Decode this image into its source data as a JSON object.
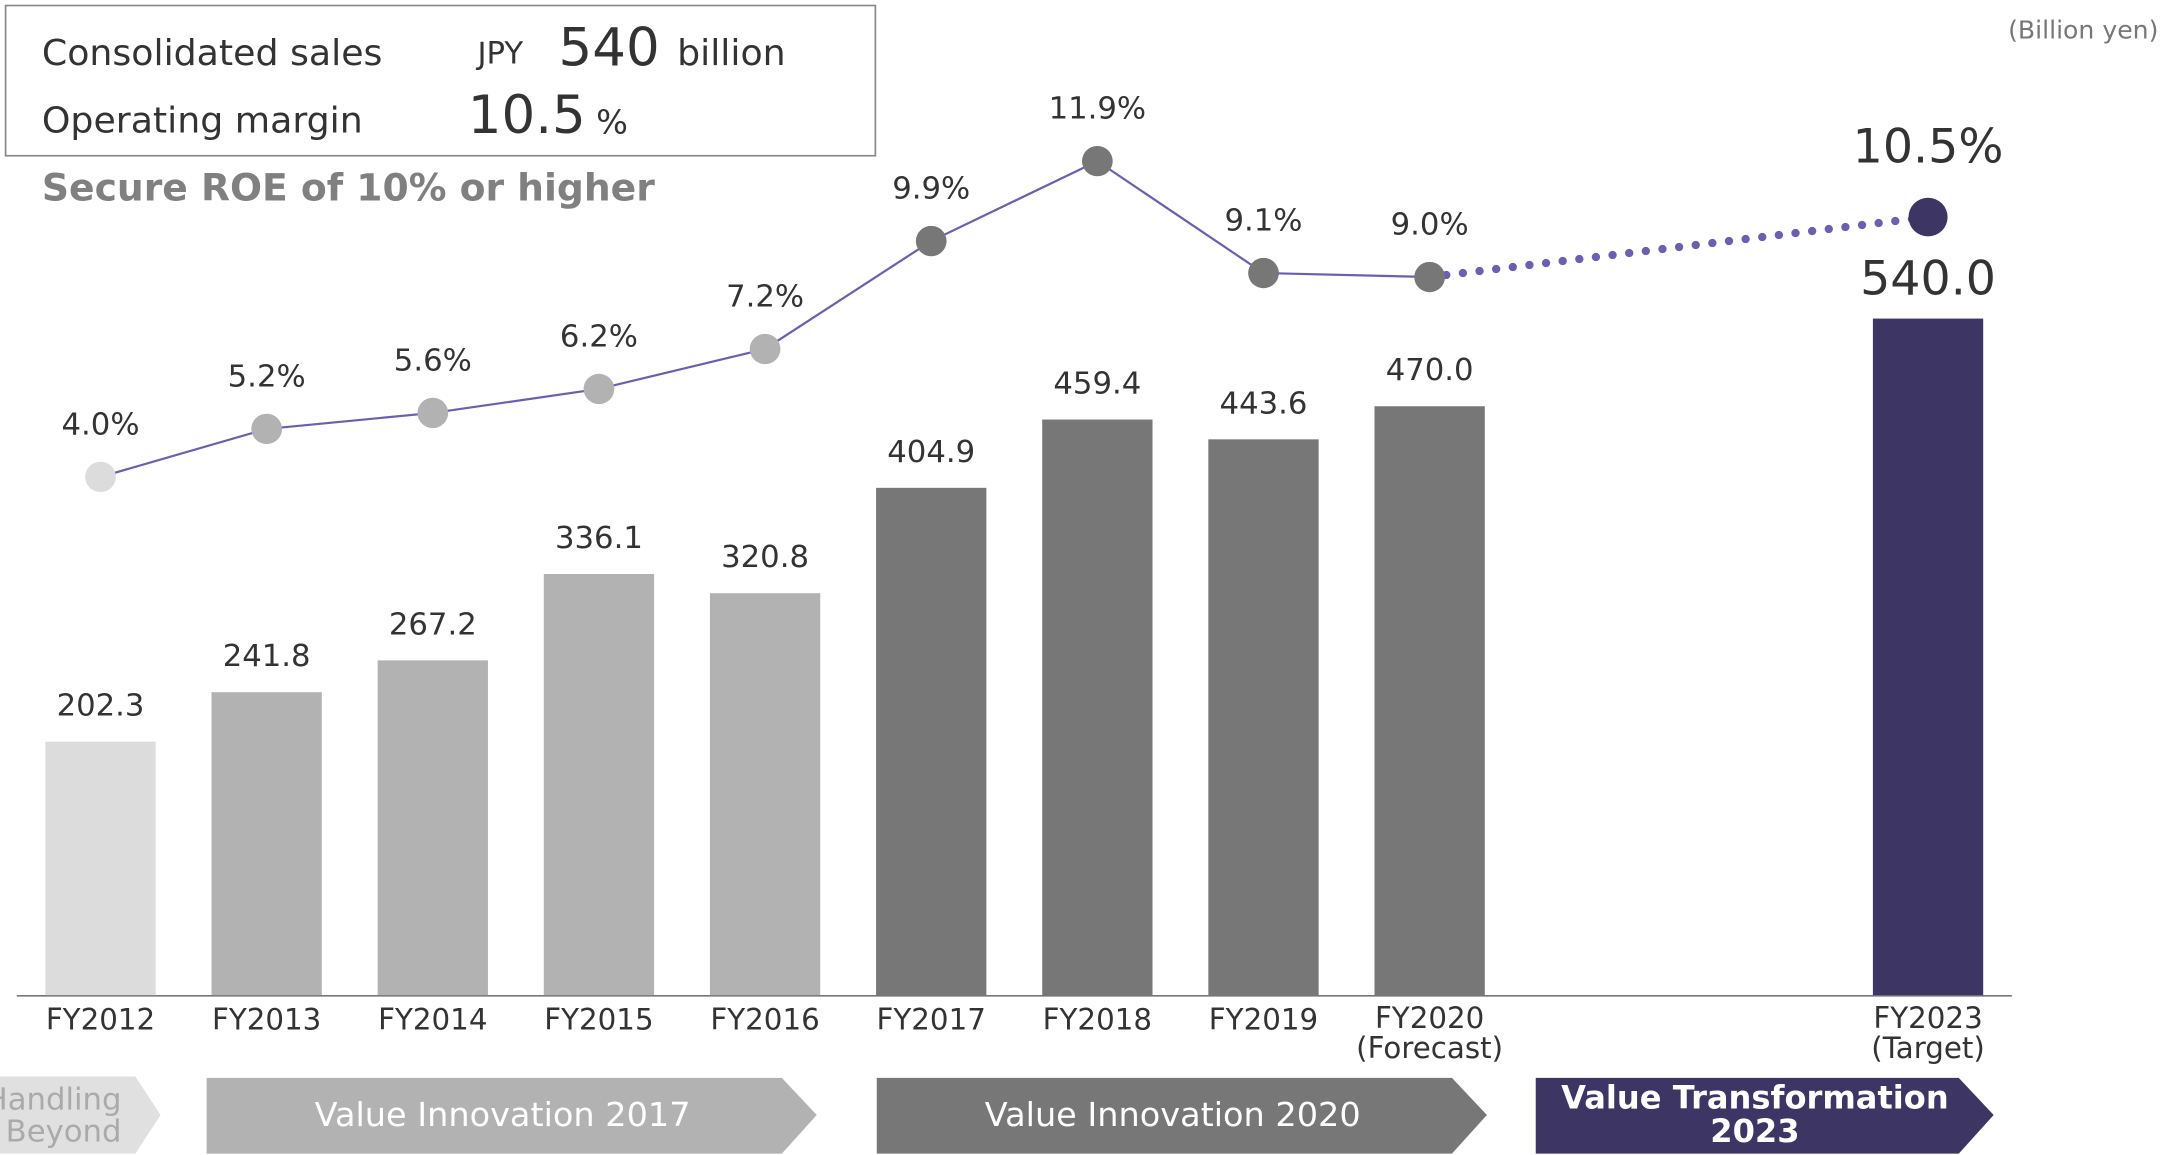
{
  "header": {
    "sales_label": "Consolidated sales",
    "sales_currency": "JPY",
    "sales_value": "540",
    "sales_unit": "billion",
    "margin_label": "Operating margin",
    "margin_value": "10.5",
    "margin_unit": "%"
  },
  "phases": [
    "Handling\nand Beyond",
    "Value Innovation 2017",
    "Value Innovation 2020",
    "Value Transformation\n2023"
  ],
  "chart_data": {
    "type": "bar-line",
    "subtitle": "Secure ROE of 10% or higher",
    "unit_label": "(Billion yen)",
    "categories": [
      "FY2012",
      "FY2013",
      "FY2014",
      "FY2015",
      "FY2016",
      "FY2017",
      "FY2018",
      "FY2019",
      "FY2020\n(Forecast)",
      null,
      null,
      "FY2023\n(Target)"
    ],
    "ylim": [
      0,
      600
    ],
    "y2lim": [
      0,
      12
    ],
    "series": [
      {
        "name": "Consolidated sales",
        "type": "bar",
        "values": [
          202.3,
          241.8,
          267.2,
          336.1,
          320.8,
          404.9,
          459.4,
          443.6,
          470.0,
          null,
          null,
          540.0
        ],
        "value_labels": [
          "202.3",
          "241.8",
          "267.2",
          "336.1",
          "320.8",
          "404.9",
          "459.4",
          "443.6",
          "470.0",
          null,
          null,
          "540.0"
        ],
        "colors": [
          "#dcdcdc",
          "#b2b2b2",
          "#b2b2b2",
          "#b2b2b2",
          "#b2b2b2",
          "#777777",
          "#777777",
          "#777777",
          "#777777",
          null,
          null,
          "#3d3564"
        ]
      },
      {
        "name": "ROE",
        "type": "line",
        "axis": "y2",
        "color": "#6a5fb0",
        "values": [
          4.0,
          5.2,
          5.6,
          6.2,
          7.2,
          9.9,
          11.9,
          9.1,
          9.0,
          null,
          null,
          10.5
        ],
        "value_labels": [
          "4.0%",
          "5.2%",
          "5.6%",
          "6.2%",
          "7.2%",
          "9.9%",
          "11.9%",
          "9.1%",
          "9.0%",
          null,
          null,
          "10.5%"
        ],
        "colors": [
          "#dcdcdc",
          "#b2b2b2",
          "#b2b2b2",
          "#b2b2b2",
          "#b2b2b2",
          "#777777",
          "#777777",
          "#777777",
          "#777777",
          null,
          null,
          "#3d3564"
        ]
      }
    ]
  }
}
